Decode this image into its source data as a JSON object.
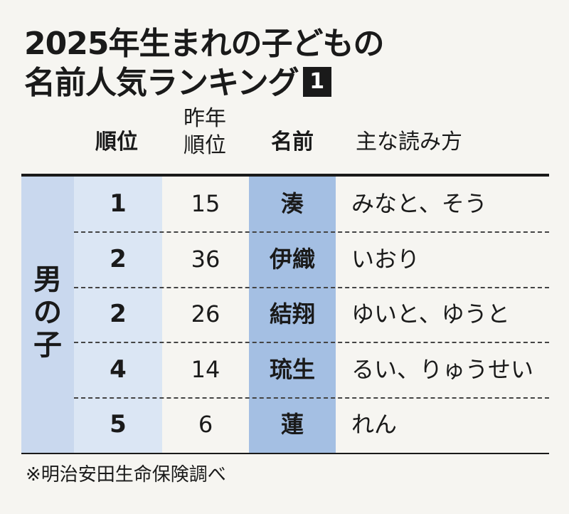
{
  "title": {
    "line1": "2025年生まれの子どもの",
    "line2": "名前人気ランキング",
    "badge": "1"
  },
  "headers": {
    "rank": "順位",
    "prev_rank_line1": "昨年",
    "prev_rank_line2": "順位",
    "name": "名前",
    "reading": "主な読み方"
  },
  "group": {
    "char1": "男",
    "char2": "の",
    "char3": "子"
  },
  "rows": [
    {
      "rank": "1",
      "prev_rank": "15",
      "name": "湊",
      "reading": "みなと、そう"
    },
    {
      "rank": "2",
      "prev_rank": "36",
      "name": "伊織",
      "reading": "いおり"
    },
    {
      "rank": "2",
      "prev_rank": "26",
      "name": "結翔",
      "reading": "ゆいと、ゆうと"
    },
    {
      "rank": "4",
      "prev_rank": "14",
      "name": "琉生",
      "reading": "るい、りゅうせい"
    },
    {
      "rank": "5",
      "prev_rank": "6",
      "name": "蓮",
      "reading": "れん"
    }
  ],
  "source": "※明治安田生命保険調べ",
  "colors": {
    "group_band": "#c9d8ee",
    "rank_band": "#dbe6f4",
    "name_band": "#a4bfe3",
    "background": "#f6f5f1"
  }
}
